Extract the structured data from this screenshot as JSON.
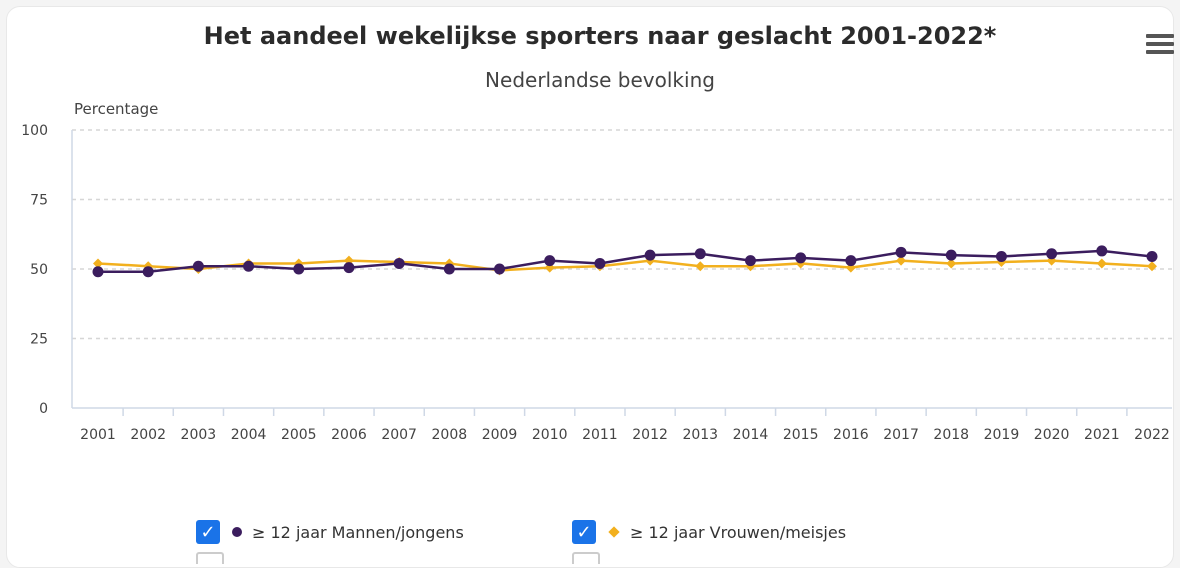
{
  "header": {
    "title": "Het aandeel wekelijkse sporters naar geslacht 2001-2022*",
    "subtitle": "Nederlandse bevolking",
    "menu_icon": "hamburger-menu-icon"
  },
  "legend": {
    "items": [
      {
        "label": "≥ 12 jaar Mannen/jongens",
        "checked": true,
        "marker": "circle",
        "color": "#3b1d5e"
      },
      {
        "label": "≥ 12 jaar Vrouwen/meisjes",
        "checked": true,
        "marker": "diamond",
        "color": "#f2b01e"
      }
    ]
  },
  "chart_data": {
    "type": "line",
    "title": "Het aandeel wekelijkse sporters naar geslacht 2001-2022*",
    "subtitle": "Nederlandse bevolking",
    "ylabel": "Percentage",
    "xlabel": "",
    "ylim": [
      0,
      100
    ],
    "yticks": [
      0,
      25,
      50,
      75,
      100
    ],
    "grid": true,
    "legend_position": "bottom",
    "categories": [
      "2001",
      "2002",
      "2003",
      "2004",
      "2005",
      "2006",
      "2007",
      "2008",
      "2009",
      "2010",
      "2011",
      "2012",
      "2013",
      "2014",
      "2015",
      "2016",
      "2017",
      "2018",
      "2019",
      "2020",
      "2021",
      "2022"
    ],
    "series": [
      {
        "name": "≥ 12 jaar Mannen/jongens",
        "color": "#3b1d5e",
        "marker": "circle",
        "values": [
          49,
          49,
          51,
          51,
          50,
          50.5,
          52,
          50,
          50,
          53,
          52,
          55,
          55.5,
          53,
          54,
          53,
          56,
          55,
          54.5,
          55.5,
          56.5,
          54.5
        ]
      },
      {
        "name": "≥ 12 jaar Vrouwen/meisjes",
        "color": "#f2b01e",
        "marker": "diamond",
        "values": [
          52,
          51,
          50,
          52,
          52,
          53,
          52.5,
          52,
          49.5,
          50.5,
          51,
          53,
          51,
          51,
          52,
          50.5,
          53,
          52,
          52.5,
          53,
          52,
          51
        ]
      }
    ]
  }
}
